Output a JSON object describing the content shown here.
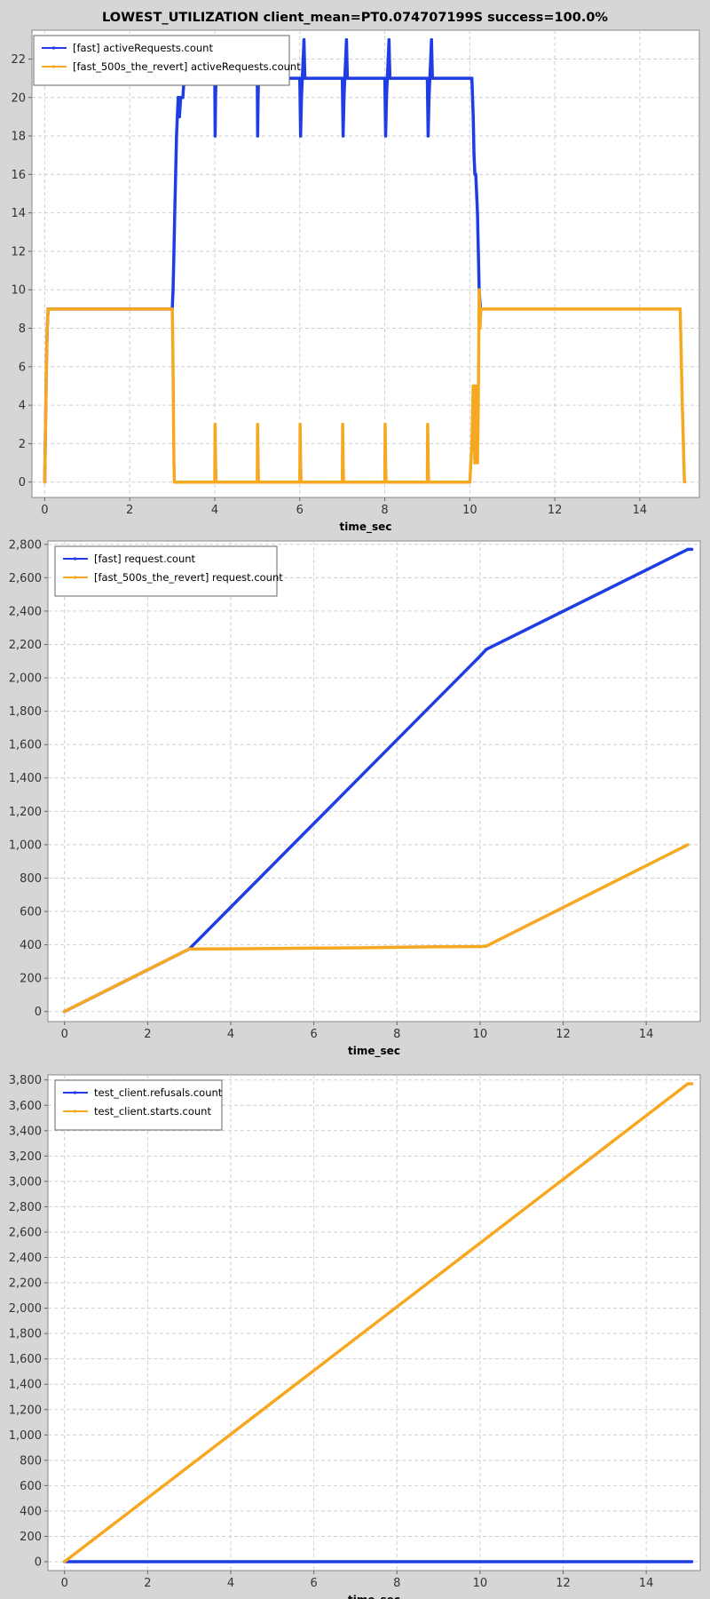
{
  "title": "LOWEST_UTILIZATION client_mean=PT0.074707199S success=100.0%",
  "colors": {
    "blue": "#1f3de3",
    "orange": "#f7a821",
    "background": "#d6d6d6",
    "plot_bg": "#ffffff",
    "grid": "#cfcfcf"
  },
  "chart_data": [
    {
      "type": "line",
      "xlabel": "time_sec",
      "ylabel": "",
      "xlim": [
        -0.3,
        15.4
      ],
      "ylim": [
        -0.8,
        23.5
      ],
      "xticks": [
        0,
        2,
        4,
        6,
        8,
        10,
        12,
        14
      ],
      "yticks": [
        0,
        2,
        4,
        6,
        8,
        10,
        12,
        14,
        16,
        18,
        20,
        22
      ],
      "grid": true,
      "legend_position": "top-left",
      "series": [
        {
          "name": "[fast] activeRequests.count",
          "color": "#1f3de3",
          "x": [
            0,
            0.02,
            0.04,
            0.06,
            0.08,
            0.1,
            0.12,
            3.0,
            3.02,
            3.04,
            3.06,
            3.08,
            3.1,
            3.12,
            3.14,
            3.15,
            3.17,
            3.2,
            3.25,
            3.28,
            3.3,
            3.33,
            4.0,
            4.01,
            4.02,
            4.03,
            4.04,
            5.0,
            5.01,
            5.02,
            5.03,
            5.04,
            6.0,
            6.02,
            6.04,
            6.06,
            6.08,
            6.1,
            6.12,
            7.0,
            7.02,
            7.04,
            7.06,
            7.08,
            7.1,
            7.12,
            8.0,
            8.02,
            8.04,
            8.06,
            8.08,
            8.1,
            8.12,
            8.14,
            9.0,
            9.02,
            9.04,
            9.06,
            9.08,
            9.1,
            9.12,
            9.14,
            10.0,
            10.05,
            10.08,
            10.1,
            10.12,
            10.14,
            10.18,
            10.22,
            10.25
          ],
          "y": [
            0,
            3,
            6,
            8,
            9,
            9,
            9,
            9,
            10,
            12,
            14,
            16,
            18,
            19,
            20,
            20,
            19,
            20,
            20,
            21,
            21,
            21,
            21,
            18,
            20,
            21,
            21,
            21,
            18,
            20,
            21,
            21,
            21,
            18,
            20,
            21,
            22,
            23,
            21,
            21,
            18,
            20,
            21,
            22,
            23,
            21,
            21,
            18,
            20,
            21,
            22,
            23,
            21,
            21,
            21,
            18,
            20,
            21,
            22,
            23,
            21,
            21,
            21,
            21,
            19,
            17,
            16,
            16,
            14,
            10,
            9
          ]
        },
        {
          "name": "[fast_500s_the_revert] activeRequests.count",
          "color": "#f7a821",
          "x": [
            0,
            0.02,
            0.04,
            0.06,
            0.08,
            0.1,
            0.12,
            3.0,
            3.01,
            3.02,
            3.03,
            3.04,
            3.05,
            3.06,
            3.2,
            4.0,
            4.01,
            4.02,
            4.03,
            4.04,
            5.0,
            5.01,
            5.02,
            5.03,
            5.04,
            6.0,
            6.01,
            6.02,
            6.03,
            6.04,
            7.0,
            7.01,
            7.02,
            7.03,
            7.04,
            8.0,
            8.01,
            8.02,
            8.03,
            8.04,
            9.0,
            9.01,
            9.02,
            9.03,
            9.04,
            10.0,
            10.05,
            10.08,
            10.1,
            10.12,
            10.14,
            10.16,
            10.18,
            10.2,
            10.22,
            10.24,
            10.26,
            10.3,
            14.9,
            14.95,
            15.0,
            15.05
          ],
          "y": [
            0,
            3,
            6,
            8,
            9,
            9,
            9,
            9,
            8,
            6,
            3,
            1,
            0,
            0,
            0,
            0,
            3,
            1,
            0,
            0,
            0,
            3,
            1,
            0,
            0,
            0,
            3,
            1,
            0,
            0,
            0,
            3,
            1,
            0,
            0,
            0,
            3,
            1,
            0,
            0,
            0,
            3,
            1,
            0,
            0,
            0,
            2,
            5,
            3,
            1,
            5,
            3,
            1,
            4,
            10,
            8,
            9,
            9,
            9,
            9,
            4,
            0
          ]
        }
      ]
    },
    {
      "type": "line",
      "xlabel": "time_sec",
      "ylabel": "",
      "xlim": [
        -0.4,
        15.3
      ],
      "ylim": [
        -60,
        2820
      ],
      "xticks": [
        0,
        2,
        4,
        6,
        8,
        10,
        12,
        14
      ],
      "yticks": [
        0,
        200,
        400,
        600,
        800,
        1000,
        1200,
        1400,
        1600,
        1800,
        2000,
        2200,
        2400,
        2600,
        2800
      ],
      "grid": true,
      "legend_position": "top-left",
      "series": [
        {
          "name": "[fast] request.count",
          "color": "#1f3de3",
          "x": [
            0,
            3.0,
            10.0,
            10.15,
            15.0,
            15.1
          ],
          "y": [
            0,
            375,
            2130,
            2170,
            2770,
            2770
          ]
        },
        {
          "name": "[fast_500s_the_revert] request.count",
          "color": "#f7a821",
          "x": [
            0,
            3.0,
            4.0,
            5.0,
            6.0,
            7.0,
            8.0,
            9.0,
            10.0,
            10.15,
            15.0
          ],
          "y": [
            0,
            375,
            376,
            378,
            380,
            382,
            385,
            388,
            390,
            392,
            1000
          ]
        }
      ]
    },
    {
      "type": "line",
      "xlabel": "time_sec",
      "ylabel": "",
      "xlim": [
        -0.4,
        15.3
      ],
      "ylim": [
        -70,
        3840
      ],
      "xticks": [
        0,
        2,
        4,
        6,
        8,
        10,
        12,
        14
      ],
      "yticks": [
        0,
        200,
        400,
        600,
        800,
        1000,
        1200,
        1400,
        1600,
        1800,
        2000,
        2200,
        2400,
        2600,
        2800,
        3000,
        3200,
        3400,
        3600,
        3800
      ],
      "grid": true,
      "legend_position": "top-left",
      "series": [
        {
          "name": "test_client.refusals.count",
          "color": "#1f3de3",
          "x": [
            0,
            15.1
          ],
          "y": [
            0,
            0
          ]
        },
        {
          "name": "test_client.starts.count",
          "color": "#f7a821",
          "x": [
            0,
            15.0,
            15.1
          ],
          "y": [
            0,
            3770,
            3770
          ]
        }
      ]
    }
  ]
}
